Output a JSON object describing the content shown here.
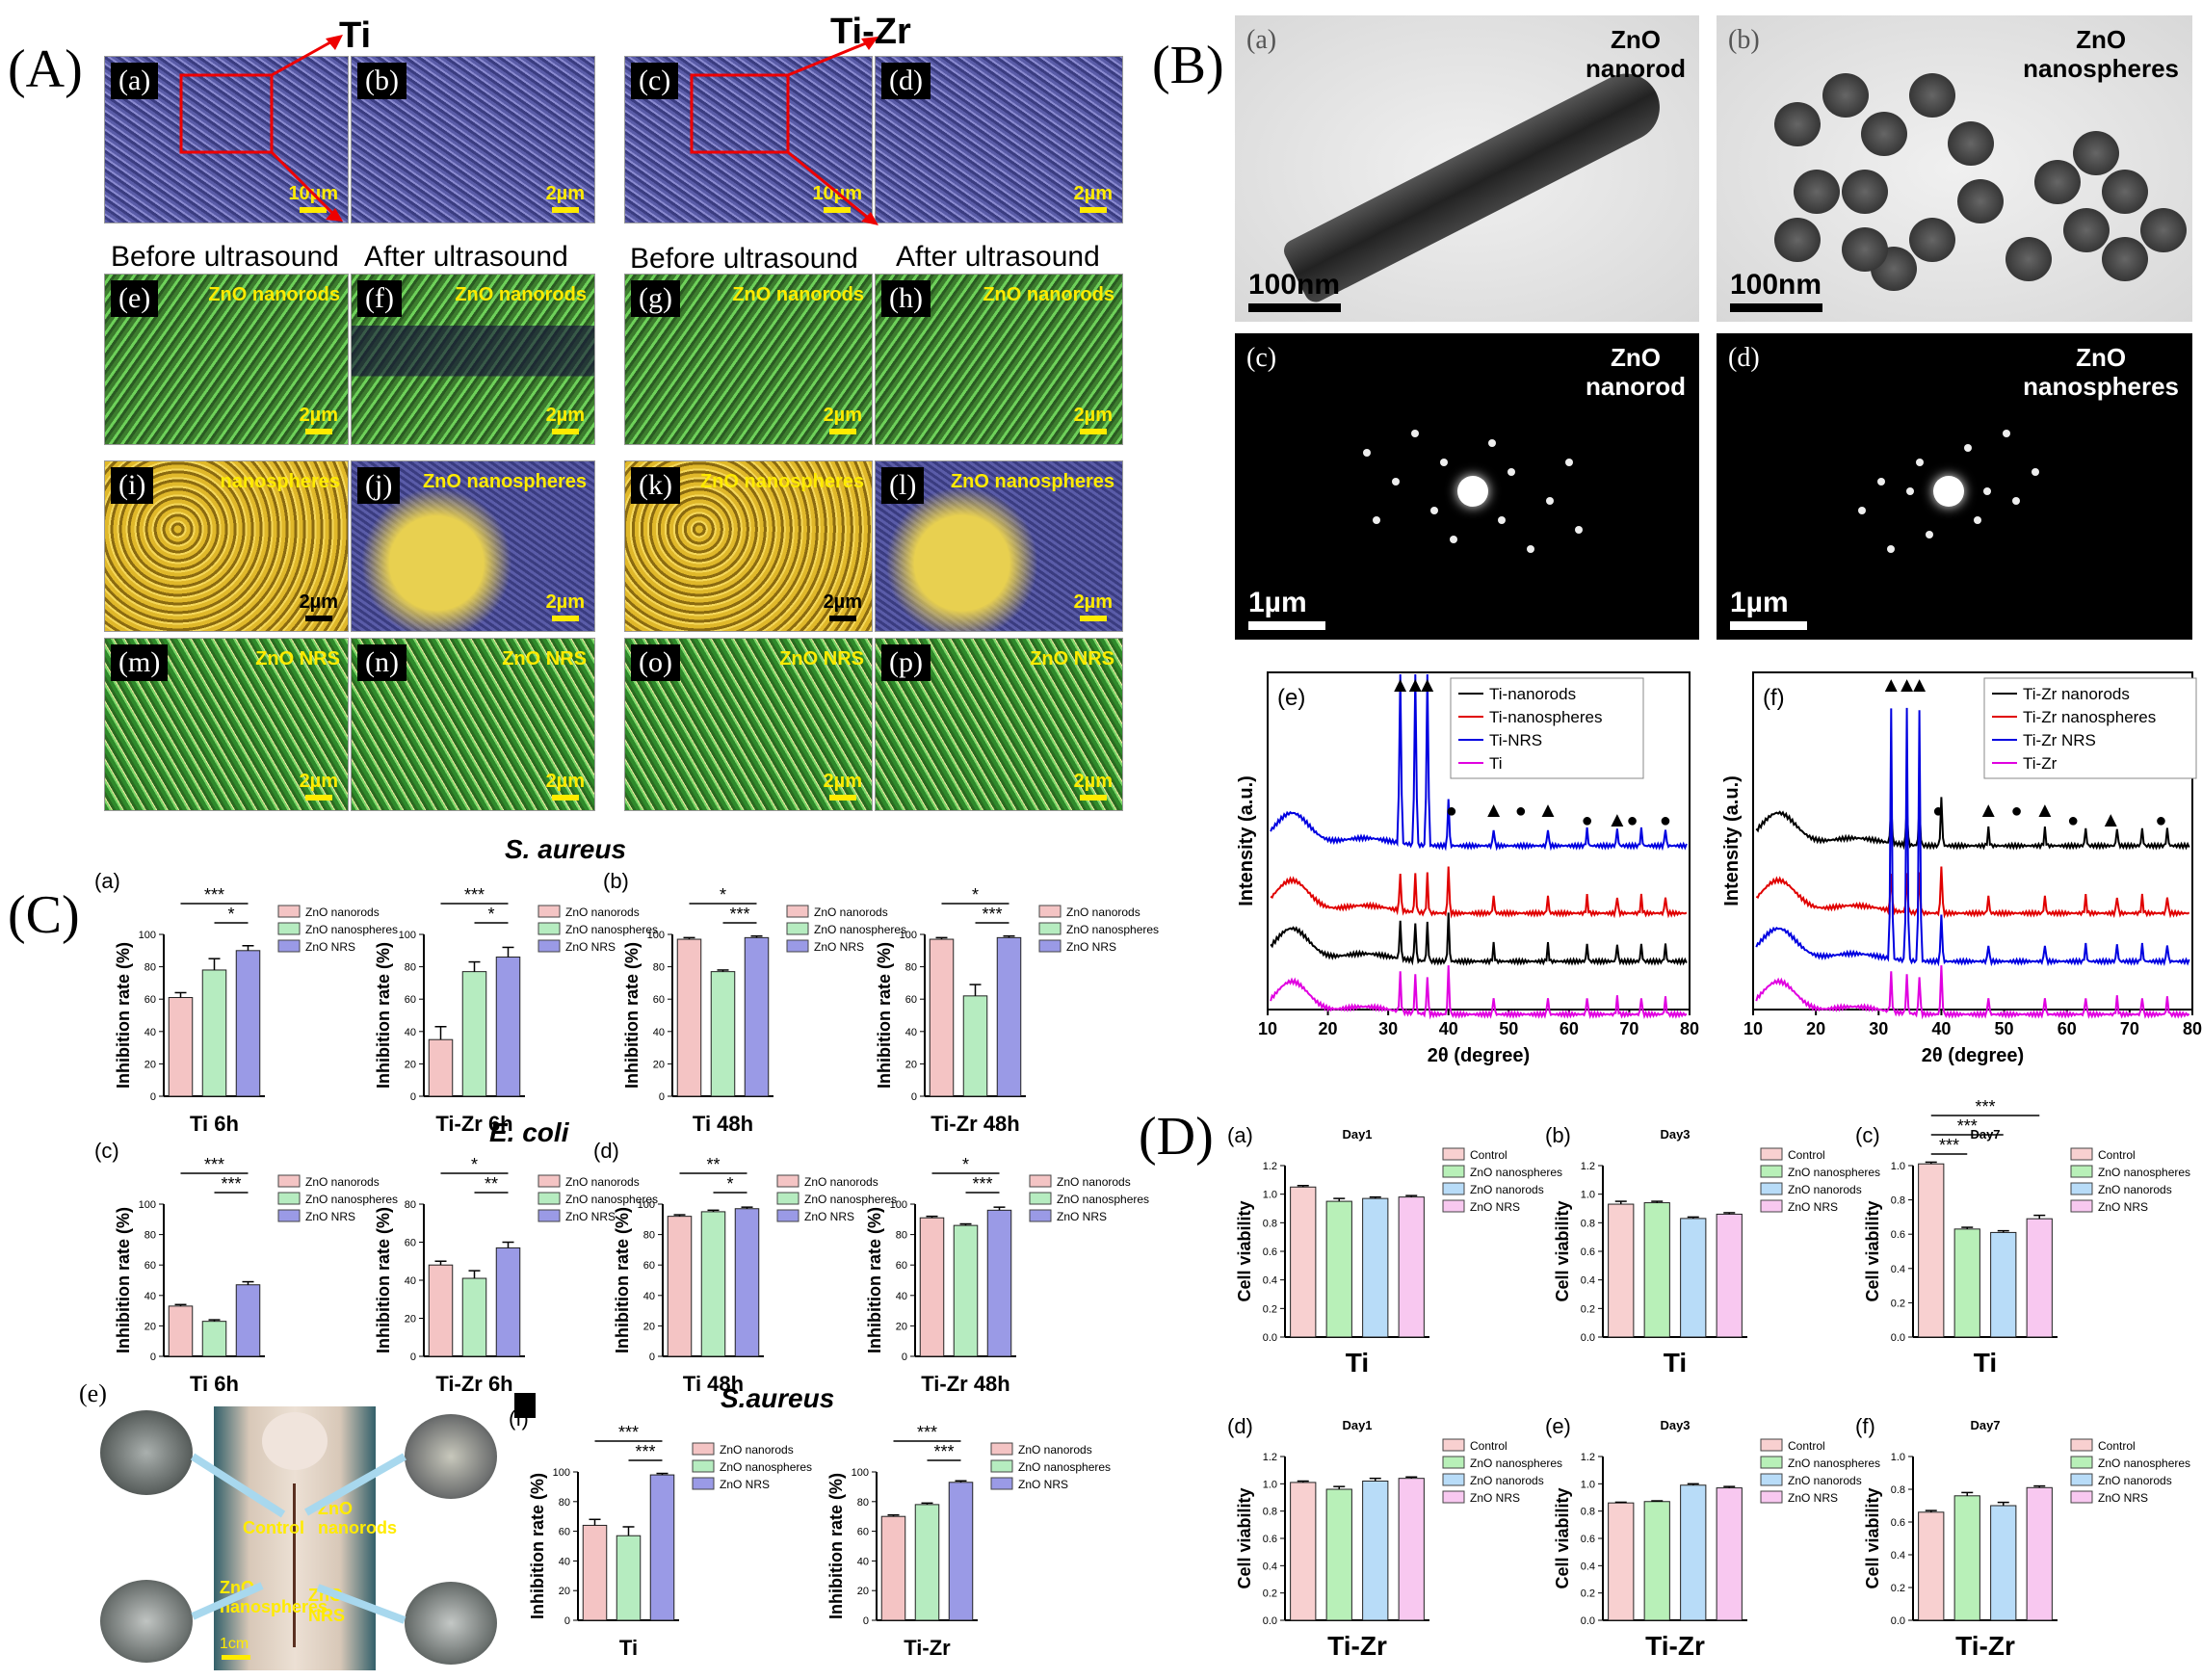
{
  "panels": {
    "A": "(A)",
    "B": "(B)",
    "C": "(C)",
    "D": "(D)"
  },
  "sectionA": {
    "title_ti": "Ti",
    "title_tizr": "Ti-Zr",
    "before": "Before ultrasound",
    "after": "After ultrasound",
    "tiles": [
      {
        "tag": "(a)",
        "label": "",
        "scale": "10µm"
      },
      {
        "tag": "(b)",
        "label": "",
        "scale": "2µm"
      },
      {
        "tag": "(c)",
        "label": "",
        "scale": "10µm"
      },
      {
        "tag": "(d)",
        "label": "",
        "scale": "2µm"
      },
      {
        "tag": "(e)",
        "label": "ZnO nanorods",
        "scale": "2µm"
      },
      {
        "tag": "(f)",
        "label": "ZnO nanorods",
        "scale": "2µm"
      },
      {
        "tag": "(g)",
        "label": "ZnO nanorods",
        "scale": "2µm"
      },
      {
        "tag": "(h)",
        "label": "ZnO nanorods",
        "scale": "2µm"
      },
      {
        "tag": "(i)",
        "label": "nanospheres",
        "scale": "2µm"
      },
      {
        "tag": "(j)",
        "label": "ZnO nanospheres",
        "scale": "2µm"
      },
      {
        "tag": "(k)",
        "label": "ZnO nanospheres",
        "scale": "2µm"
      },
      {
        "tag": "(l)",
        "label": "ZnO nanospheres",
        "scale": "2µm"
      },
      {
        "tag": "(m)",
        "label": "ZnO NRS",
        "scale": "2µm"
      },
      {
        "tag": "(n)",
        "label": "ZnO NRS",
        "scale": "2µm"
      },
      {
        "tag": "(o)",
        "label": "ZnO NRS",
        "scale": "2µm"
      },
      {
        "tag": "(p)",
        "label": "ZnO NRS",
        "scale": "2µm"
      }
    ]
  },
  "sectionB": {
    "tem": [
      {
        "tag": "(a)",
        "name": "ZnO\nnanorod",
        "scale": "100nm"
      },
      {
        "tag": "(b)",
        "name": "ZnO\nnanospheres",
        "scale": "100nm"
      },
      {
        "tag": "(c)",
        "name": "ZnO\nnanorod",
        "scale": "1µm"
      },
      {
        "tag": "(d)",
        "name": "ZnO\nnanospheres",
        "scale": "1µm"
      }
    ],
    "xrd_xlabel": "2θ (degree)",
    "xrd_ylabel": "Intensity (a.u.)"
  },
  "sectionC": {
    "title_saureus": "S. aureus",
    "title_ecoli": "E. coli",
    "title_saureus2": "S.aureus",
    "ylabel": "Inhibition rate (%)",
    "photo_labels": {
      "tag": "(e)",
      "control": "Control",
      "nanorods": "ZnO\nnanorods",
      "nanospheres": "ZnO\nnanospheres",
      "nrs": "ZnO NRS",
      "scale": "1cm"
    }
  },
  "sectionD": {
    "ylabel": "Cell viability"
  },
  "chart_data": [
    {
      "type": "line",
      "id": "xrd-ti",
      "tag": "(e)",
      "xlabel": "2θ (degree)",
      "ylabel": "Intensity (a.u.)",
      "xlim": [
        10,
        80
      ],
      "xticks": [
        10,
        20,
        30,
        40,
        50,
        60,
        70,
        80
      ],
      "series": [
        {
          "name": "Ti-nanorods",
          "color": "#000000"
        },
        {
          "name": "Ti-nanospheres",
          "color": "#e00000"
        },
        {
          "name": "Ti-NRS",
          "color": "#0000e0"
        },
        {
          "name": "Ti",
          "color": "#e000e0"
        }
      ],
      "markers": [
        {
          "x": 32,
          "sym": "▲"
        },
        {
          "x": 34.5,
          "sym": "▲"
        },
        {
          "x": 36.5,
          "sym": "▲"
        },
        {
          "x": 40.5,
          "sym": "●"
        },
        {
          "x": 47.5,
          "sym": "▲"
        },
        {
          "x": 52,
          "sym": "●"
        },
        {
          "x": 56.5,
          "sym": "▲"
        },
        {
          "x": 63,
          "sym": "●"
        },
        {
          "x": 68,
          "sym": "▲"
        },
        {
          "x": 70.5,
          "sym": "●"
        },
        {
          "x": 76,
          "sym": "●"
        }
      ]
    },
    {
      "type": "line",
      "id": "xrd-tizr",
      "tag": "(f)",
      "xlabel": "2θ (degree)",
      "ylabel": "Intensity (a.u.)",
      "xlim": [
        10,
        80
      ],
      "xticks": [
        10,
        20,
        30,
        40,
        50,
        60,
        70,
        80
      ],
      "series": [
        {
          "name": "Ti-Zr nanorods",
          "color": "#000000"
        },
        {
          "name": "Ti-Zr nanospheres",
          "color": "#e00000"
        },
        {
          "name": "Ti-Zr NRS",
          "color": "#0000e0"
        },
        {
          "name": "Ti-Zr",
          "color": "#e000e0"
        }
      ],
      "markers": [
        {
          "x": 32,
          "sym": "▲"
        },
        {
          "x": 34.5,
          "sym": "▲"
        },
        {
          "x": 36.5,
          "sym": "▲"
        },
        {
          "x": 39.5,
          "sym": "●"
        },
        {
          "x": 47.5,
          "sym": "▲"
        },
        {
          "x": 52,
          "sym": "●"
        },
        {
          "x": 56.5,
          "sym": "▲"
        },
        {
          "x": 61,
          "sym": "●"
        },
        {
          "x": 67,
          "sym": "▲"
        },
        {
          "x": 75,
          "sym": "●"
        }
      ]
    },
    {
      "type": "bar",
      "id": "C-a1",
      "tag": "(a)",
      "xlabel": "Ti 6h",
      "ylim": [
        0,
        100
      ],
      "yticks": [
        0,
        20,
        40,
        60,
        80,
        100
      ],
      "categories": [
        "ZnO nanorods",
        "ZnO nanospheres",
        "ZnO NRS"
      ],
      "values": [
        61,
        78,
        90
      ],
      "errors": [
        3,
        7,
        3
      ],
      "sig": [
        {
          "from": 0,
          "to": 2,
          "text": "***",
          "lvl": 1
        },
        {
          "from": 1,
          "to": 2,
          "text": "*",
          "lvl": 0
        }
      ]
    },
    {
      "type": "bar",
      "id": "C-a2",
      "tag": "",
      "xlabel": "Ti-Zr 6h",
      "ylim": [
        0,
        100
      ],
      "yticks": [
        0,
        20,
        40,
        60,
        80,
        100
      ],
      "categories": [
        "ZnO nanorods",
        "ZnO nanospheres",
        "ZnO NRS"
      ],
      "values": [
        35,
        77,
        86
      ],
      "errors": [
        8,
        6,
        6
      ],
      "sig": [
        {
          "from": 0,
          "to": 2,
          "text": "***",
          "lvl": 1
        },
        {
          "from": 1,
          "to": 2,
          "text": "*",
          "lvl": 0
        }
      ]
    },
    {
      "type": "bar",
      "id": "C-b1",
      "tag": "(b)",
      "xlabel": "Ti 48h",
      "ylim": [
        0,
        100
      ],
      "yticks": [
        0,
        20,
        40,
        60,
        80,
        100
      ],
      "categories": [
        "ZnO nanorods",
        "ZnO nanospheres",
        "ZnO NRS"
      ],
      "values": [
        97,
        77,
        98
      ],
      "errors": [
        1,
        1,
        1
      ],
      "sig": [
        {
          "from": 0,
          "to": 2,
          "text": "*",
          "lvl": 1
        },
        {
          "from": 1,
          "to": 2,
          "text": "***",
          "lvl": 0
        }
      ]
    },
    {
      "type": "bar",
      "id": "C-b2",
      "tag": "",
      "xlabel": "Ti-Zr 48h",
      "ylim": [
        0,
        100
      ],
      "yticks": [
        0,
        20,
        40,
        60,
        80,
        100
      ],
      "categories": [
        "ZnO nanorods",
        "ZnO nanospheres",
        "ZnO NRS"
      ],
      "values": [
        97,
        62,
        98
      ],
      "errors": [
        1,
        7,
        1
      ],
      "sig": [
        {
          "from": 0,
          "to": 2,
          "text": "*",
          "lvl": 1
        },
        {
          "from": 1,
          "to": 2,
          "text": "***",
          "lvl": 0
        }
      ]
    },
    {
      "type": "bar",
      "id": "C-c1",
      "tag": "(c)",
      "xlabel": "Ti 6h",
      "ylim": [
        0,
        100
      ],
      "yticks": [
        0,
        20,
        40,
        60,
        80,
        100
      ],
      "categories": [
        "ZnO nanorods",
        "ZnO nanospheres",
        "ZnO NRS"
      ],
      "values": [
        33,
        23,
        47
      ],
      "errors": [
        1,
        1,
        2
      ],
      "sig": [
        {
          "from": 0,
          "to": 2,
          "text": "***",
          "lvl": 1
        },
        {
          "from": 1,
          "to": 2,
          "text": "***",
          "lvl": 0
        }
      ]
    },
    {
      "type": "bar",
      "id": "C-c2",
      "tag": "",
      "xlabel": "Ti-Zr 6h",
      "ylim": [
        0,
        80
      ],
      "yticks": [
        0,
        20,
        40,
        60,
        80
      ],
      "categories": [
        "ZnO nanorods",
        "ZnO nanospheres",
        "ZnO NRS"
      ],
      "values": [
        48,
        41,
        57
      ],
      "errors": [
        2,
        4,
        3
      ],
      "sig": [
        {
          "from": 0,
          "to": 2,
          "text": "*",
          "lvl": 1
        },
        {
          "from": 1,
          "to": 2,
          "text": "**",
          "lvl": 0
        }
      ]
    },
    {
      "type": "bar",
      "id": "C-d1",
      "tag": "(d)",
      "xlabel": "Ti 48h",
      "ylim": [
        0,
        100
      ],
      "yticks": [
        0,
        20,
        40,
        60,
        80,
        100
      ],
      "categories": [
        "ZnO nanorods",
        "ZnO nanospheres",
        "ZnO NRS"
      ],
      "values": [
        92,
        95,
        97
      ],
      "errors": [
        1,
        1,
        1
      ],
      "sig": [
        {
          "from": 0,
          "to": 2,
          "text": "**",
          "lvl": 1
        },
        {
          "from": 1,
          "to": 2,
          "text": "*",
          "lvl": 0
        }
      ]
    },
    {
      "type": "bar",
      "id": "C-d2",
      "tag": "",
      "xlabel": "Ti-Zr 48h",
      "ylim": [
        0,
        100
      ],
      "yticks": [
        0,
        20,
        40,
        60,
        80,
        100
      ],
      "categories": [
        "ZnO nanorods",
        "ZnO nanospheres",
        "ZnO NRS"
      ],
      "values": [
        91,
        86,
        96
      ],
      "errors": [
        1,
        1,
        2
      ],
      "sig": [
        {
          "from": 0,
          "to": 2,
          "text": "*",
          "lvl": 1
        },
        {
          "from": 1,
          "to": 2,
          "text": "***",
          "lvl": 0
        }
      ]
    },
    {
      "type": "bar",
      "id": "C-f1",
      "tag": "(f)",
      "xlabel": "Ti",
      "ylim": [
        0,
        100
      ],
      "yticks": [
        0,
        20,
        40,
        60,
        80,
        100
      ],
      "categories": [
        "ZnO nanorods",
        "ZnO nanospheres",
        "ZnO NRS"
      ],
      "values": [
        64,
        57,
        98
      ],
      "errors": [
        4,
        6,
        1
      ],
      "sig": [
        {
          "from": 0,
          "to": 2,
          "text": "***",
          "lvl": 1
        },
        {
          "from": 1,
          "to": 2,
          "text": "***",
          "lvl": 0
        }
      ]
    },
    {
      "type": "bar",
      "id": "C-f2",
      "tag": "",
      "xlabel": "Ti-Zr",
      "ylim": [
        0,
        100
      ],
      "yticks": [
        0,
        20,
        40,
        60,
        80,
        100
      ],
      "categories": [
        "ZnO nanorods",
        "ZnO nanospheres",
        "ZnO NRS"
      ],
      "values": [
        70,
        78,
        93
      ],
      "errors": [
        1,
        1,
        1
      ],
      "sig": [
        {
          "from": 0,
          "to": 2,
          "text": "***",
          "lvl": 1
        },
        {
          "from": 1,
          "to": 2,
          "text": "***",
          "lvl": 0
        }
      ]
    },
    {
      "type": "bar",
      "id": "D-a",
      "tag": "(a)",
      "title": "Day1",
      "xlabel": "Ti",
      "ylim": [
        0,
        1.2
      ],
      "yticks": [
        0.0,
        0.2,
        0.4,
        0.6,
        0.8,
        1.0,
        1.2
      ],
      "categories": [
        "Control",
        "ZnO nanospheres",
        "ZnO nanorods",
        "ZnO NRS"
      ],
      "values": [
        1.05,
        0.95,
        0.97,
        0.98
      ],
      "errors": [
        0.01,
        0.02,
        0.01,
        0.01
      ],
      "sig": []
    },
    {
      "type": "bar",
      "id": "D-b",
      "tag": "(b)",
      "title": "Day3",
      "xlabel": "Ti",
      "ylim": [
        0,
        1.2
      ],
      "yticks": [
        0.0,
        0.2,
        0.4,
        0.6,
        0.8,
        1.0,
        1.2
      ],
      "categories": [
        "Control",
        "ZnO nanospheres",
        "ZnO nanorods",
        "ZnO NRS"
      ],
      "values": [
        0.93,
        0.94,
        0.83,
        0.86
      ],
      "errors": [
        0.02,
        0.01,
        0.01,
        0.01
      ],
      "sig": []
    },
    {
      "type": "bar",
      "id": "D-c",
      "tag": "(c)",
      "title": "Day7",
      "xlabel": "Ti",
      "ylim": [
        0,
        1.0
      ],
      "yticks": [
        0.0,
        0.2,
        0.4,
        0.6,
        0.8,
        1.0
      ],
      "categories": [
        "Control",
        "ZnO nanospheres",
        "ZnO nanorods",
        "ZnO NRS"
      ],
      "values": [
        1.01,
        0.63,
        0.61,
        0.69
      ],
      "errors": [
        0.01,
        0.01,
        0.01,
        0.02
      ],
      "sig": [
        {
          "from": 0,
          "to": 3,
          "text": "***",
          "lvl": 2
        },
        {
          "from": 0,
          "to": 2,
          "text": "***",
          "lvl": 1
        },
        {
          "from": 0,
          "to": 1,
          "text": "***",
          "lvl": 0
        }
      ]
    },
    {
      "type": "bar",
      "id": "D-d",
      "tag": "(d)",
      "title": "Day1",
      "xlabel": "Ti-Zr",
      "ylim": [
        0,
        1.2
      ],
      "yticks": [
        0.0,
        0.2,
        0.4,
        0.6,
        0.8,
        1.0,
        1.2
      ],
      "categories": [
        "Control",
        "ZnO nanospheres",
        "ZnO nanorods",
        "ZnO NRS"
      ],
      "values": [
        1.01,
        0.96,
        1.02,
        1.04
      ],
      "errors": [
        0.01,
        0.02,
        0.02,
        0.01
      ],
      "sig": []
    },
    {
      "type": "bar",
      "id": "D-e",
      "tag": "(e)",
      "title": "Day3",
      "xlabel": "Ti-Zr",
      "ylim": [
        0,
        1.2
      ],
      "yticks": [
        0.0,
        0.2,
        0.4,
        0.6,
        0.8,
        1.0,
        1.2
      ],
      "categories": [
        "Control",
        "ZnO nanospheres",
        "ZnO nanorods",
        "ZnO NRS"
      ],
      "values": [
        0.86,
        0.87,
        0.99,
        0.97
      ],
      "errors": [
        0.005,
        0.005,
        0.01,
        0.01
      ],
      "sig": []
    },
    {
      "type": "bar",
      "id": "D-f",
      "tag": "(f)",
      "title": "Day7",
      "xlabel": "Ti-Zr",
      "ylim": [
        0,
        1.0
      ],
      "yticks": [
        0.0,
        0.2,
        0.4,
        0.6,
        0.8,
        1.0
      ],
      "categories": [
        "Control",
        "ZnO nanospheres",
        "ZnO nanorods",
        "ZnO NRS"
      ],
      "values": [
        0.66,
        0.76,
        0.7,
        0.81
      ],
      "errors": [
        0.01,
        0.02,
        0.02,
        0.01
      ],
      "sig": []
    }
  ],
  "colors": {
    "c3": [
      "#f4c4c4",
      "#b6ecc0",
      "#9a9ae6"
    ],
    "c4": [
      "#f8d0d0",
      "#b8f0b8",
      "#b8dcf8",
      "#f8c8f0"
    ]
  }
}
